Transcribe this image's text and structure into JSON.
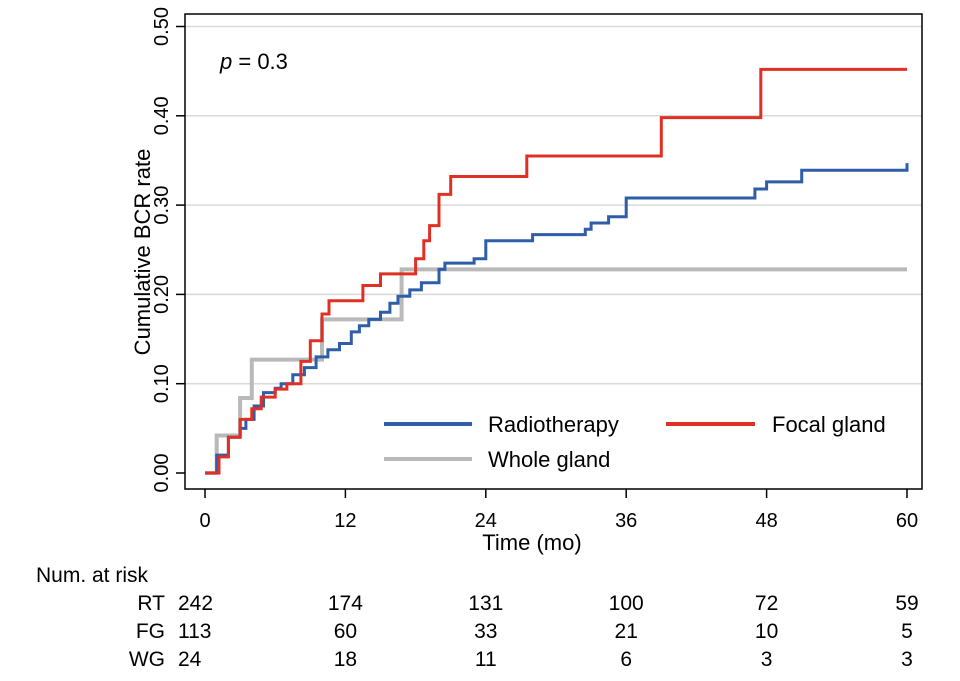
{
  "chart_data": {
    "type": "line",
    "step": true,
    "xlabel": "Time (mo)",
    "ylabel": "Cumulative BCR rate",
    "xlim": [
      0,
      63
    ],
    "ylim": [
      0,
      0.5
    ],
    "x_ticks": [
      0,
      12,
      24,
      36,
      48,
      60
    ],
    "y_ticks": [
      0.0,
      0.1,
      0.2,
      0.3,
      0.4,
      0.5
    ],
    "y_tick_labels": [
      "0.00",
      "0.10",
      "0.20",
      "0.30",
      "0.40",
      "0.50"
    ],
    "grid": true,
    "annotation": {
      "italic": "p",
      "rest": " = 0.3"
    },
    "legend": {
      "placement": "bottom-right"
    },
    "series": [
      {
        "name": "Radiotherapy",
        "color": "#2e5ea8",
        "points": [
          [
            0,
            0
          ],
          [
            1,
            0
          ],
          [
            1,
            0.02
          ],
          [
            2,
            0.02
          ],
          [
            2,
            0.04
          ],
          [
            3,
            0.04
          ],
          [
            3,
            0.05
          ],
          [
            3.5,
            0.05
          ],
          [
            3.5,
            0.06
          ],
          [
            4.2,
            0.06
          ],
          [
            4.2,
            0.075
          ],
          [
            5,
            0.075
          ],
          [
            5,
            0.09
          ],
          [
            6,
            0.09
          ],
          [
            6,
            0.095
          ],
          [
            6.5,
            0.095
          ],
          [
            6.5,
            0.1
          ],
          [
            7.5,
            0.1
          ],
          [
            7.5,
            0.11
          ],
          [
            8.5,
            0.11
          ],
          [
            8.5,
            0.118
          ],
          [
            9.5,
            0.118
          ],
          [
            9.5,
            0.13
          ],
          [
            10.5,
            0.13
          ],
          [
            10.5,
            0.138
          ],
          [
            11.5,
            0.138
          ],
          [
            11.5,
            0.145
          ],
          [
            12.5,
            0.145
          ],
          [
            12.5,
            0.158
          ],
          [
            13.2,
            0.158
          ],
          [
            13.2,
            0.165
          ],
          [
            14,
            0.165
          ],
          [
            14,
            0.172
          ],
          [
            15,
            0.172
          ],
          [
            15,
            0.18
          ],
          [
            15.8,
            0.18
          ],
          [
            15.8,
            0.19
          ],
          [
            16.5,
            0.19
          ],
          [
            16.5,
            0.198
          ],
          [
            17.5,
            0.198
          ],
          [
            17.5,
            0.205
          ],
          [
            18.5,
            0.205
          ],
          [
            18.5,
            0.213
          ],
          [
            20,
            0.213
          ],
          [
            20,
            0.228
          ],
          [
            20.5,
            0.228
          ],
          [
            20.5,
            0.235
          ],
          [
            23,
            0.235
          ],
          [
            23,
            0.24
          ],
          [
            24,
            0.24
          ],
          [
            24,
            0.26
          ],
          [
            28,
            0.26
          ],
          [
            28,
            0.267
          ],
          [
            32.5,
            0.267
          ],
          [
            32.5,
            0.273
          ],
          [
            33,
            0.273
          ],
          [
            33,
            0.28
          ],
          [
            34.5,
            0.28
          ],
          [
            34.5,
            0.287
          ],
          [
            36,
            0.287
          ],
          [
            36,
            0.308
          ],
          [
            47,
            0.308
          ],
          [
            47,
            0.318
          ],
          [
            48,
            0.318
          ],
          [
            48,
            0.326
          ],
          [
            51,
            0.326
          ],
          [
            51,
            0.339
          ],
          [
            60,
            0.339
          ],
          [
            60,
            0.347
          ]
        ]
      },
      {
        "name": "Focal gland",
        "color": "#e03025",
        "points": [
          [
            0,
            0
          ],
          [
            1.2,
            0
          ],
          [
            1.2,
            0.018
          ],
          [
            2,
            0.018
          ],
          [
            2,
            0.04
          ],
          [
            3,
            0.04
          ],
          [
            3,
            0.06
          ],
          [
            4,
            0.06
          ],
          [
            4,
            0.072
          ],
          [
            4.8,
            0.072
          ],
          [
            4.8,
            0.085
          ],
          [
            6,
            0.085
          ],
          [
            6,
            0.094
          ],
          [
            7,
            0.094
          ],
          [
            7,
            0.1
          ],
          [
            8.2,
            0.1
          ],
          [
            8.2,
            0.125
          ],
          [
            9,
            0.125
          ],
          [
            9,
            0.148
          ],
          [
            10,
            0.148
          ],
          [
            10,
            0.178
          ],
          [
            10.6,
            0.178
          ],
          [
            10.6,
            0.193
          ],
          [
            13.5,
            0.193
          ],
          [
            13.5,
            0.21
          ],
          [
            15,
            0.21
          ],
          [
            15,
            0.223
          ],
          [
            18,
            0.223
          ],
          [
            18,
            0.24
          ],
          [
            18.7,
            0.24
          ],
          [
            18.7,
            0.26
          ],
          [
            19.2,
            0.26
          ],
          [
            19.2,
            0.277
          ],
          [
            20,
            0.277
          ],
          [
            20,
            0.312
          ],
          [
            21,
            0.312
          ],
          [
            21,
            0.332
          ],
          [
            27.5,
            0.332
          ],
          [
            27.5,
            0.355
          ],
          [
            39,
            0.355
          ],
          [
            39,
            0.398
          ],
          [
            47.5,
            0.398
          ],
          [
            47.5,
            0.452
          ],
          [
            60,
            0.452
          ]
        ]
      },
      {
        "name": "Whole gland",
        "color": "#b9b9b9",
        "points": [
          [
            0,
            0
          ],
          [
            1,
            0
          ],
          [
            1,
            0.042
          ],
          [
            3,
            0.042
          ],
          [
            3,
            0.084
          ],
          [
            4,
            0.084
          ],
          [
            4,
            0.127
          ],
          [
            10,
            0.127
          ],
          [
            10,
            0.172
          ],
          [
            16.8,
            0.172
          ],
          [
            16.8,
            0.228
          ],
          [
            60,
            0.228
          ]
        ]
      }
    ],
    "risk_table": {
      "title": "Num. at risk",
      "times": [
        0,
        12,
        24,
        36,
        48,
        60
      ],
      "rows": [
        {
          "label": "RT",
          "values": [
            242,
            174,
            131,
            100,
            72,
            59
          ]
        },
        {
          "label": "FG",
          "values": [
            113,
            60,
            33,
            21,
            10,
            5
          ]
        },
        {
          "label": "WG",
          "values": [
            24,
            18,
            11,
            6,
            3,
            3
          ]
        }
      ]
    }
  }
}
